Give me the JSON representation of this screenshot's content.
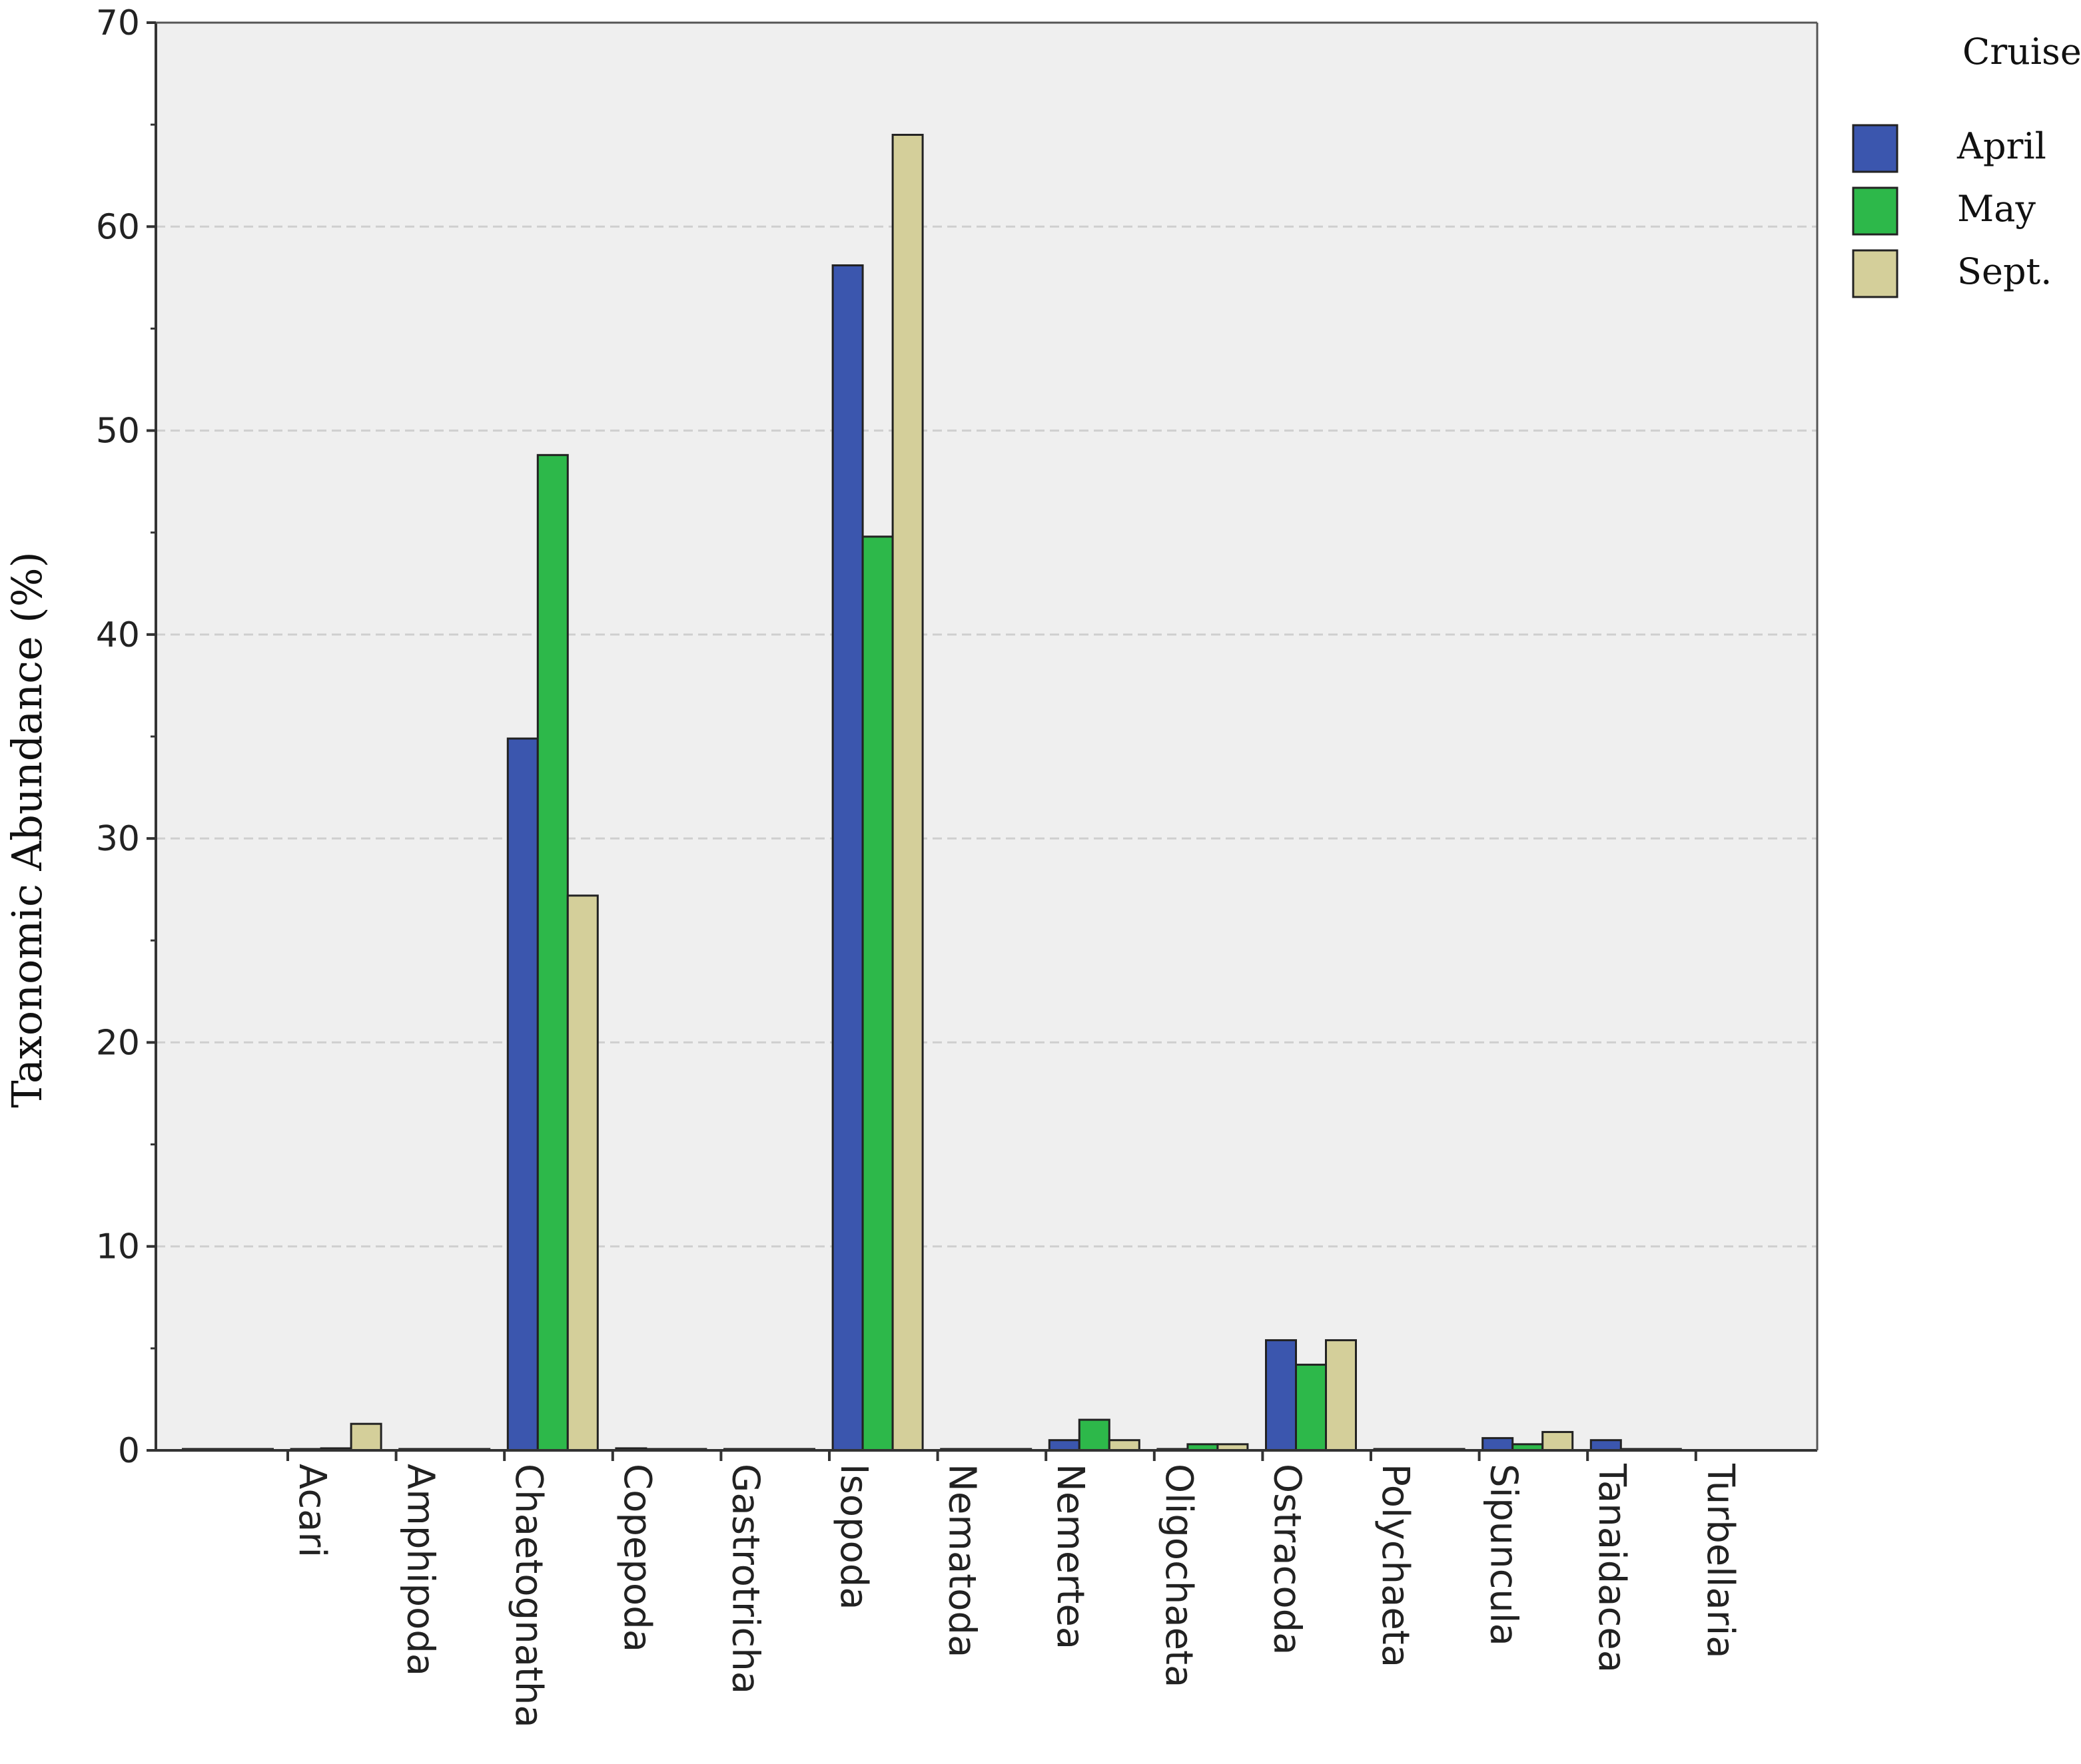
{
  "chart_data": {
    "type": "bar",
    "title": "",
    "xlabel": "",
    "ylabel": "Taxonomic Abundance (%)",
    "ylim": [
      0,
      70
    ],
    "yticks": [
      0,
      10,
      20,
      30,
      40,
      50,
      60,
      70
    ],
    "grid": true,
    "legend_title": "Cruise",
    "legend_position": "right",
    "categories": [
      "Acari",
      "Amphipoda",
      "Chaetognatha",
      "Copepoda",
      "Gastrotricha",
      "Isopoda",
      "Nematoda",
      "Nemertea",
      "Oligochaeta",
      "Ostracoda",
      "Polychaeta",
      "Sipuncula",
      "Tanaidacea",
      "Turbellaria"
    ],
    "series": [
      {
        "name": "April",
        "color": "#3b56ae",
        "values": [
          0,
          0,
          0,
          34.9,
          0.1,
          0,
          58.1,
          0,
          0.5,
          0.05,
          5.4,
          0,
          0.6,
          0.5
        ]
      },
      {
        "name": "May",
        "color": "#2db84a",
        "values": [
          0,
          0.1,
          0,
          48.8,
          0,
          0,
          44.8,
          0,
          1.5,
          0.3,
          4.2,
          0,
          0.3,
          0
        ]
      },
      {
        "name": "Sept.",
        "color": "#d4cf9a",
        "values": [
          0.05,
          1.3,
          0.05,
          27.2,
          0,
          0.05,
          64.5,
          0,
          0.5,
          0.3,
          5.4,
          0.05,
          0.9,
          0.05
        ]
      }
    ]
  }
}
